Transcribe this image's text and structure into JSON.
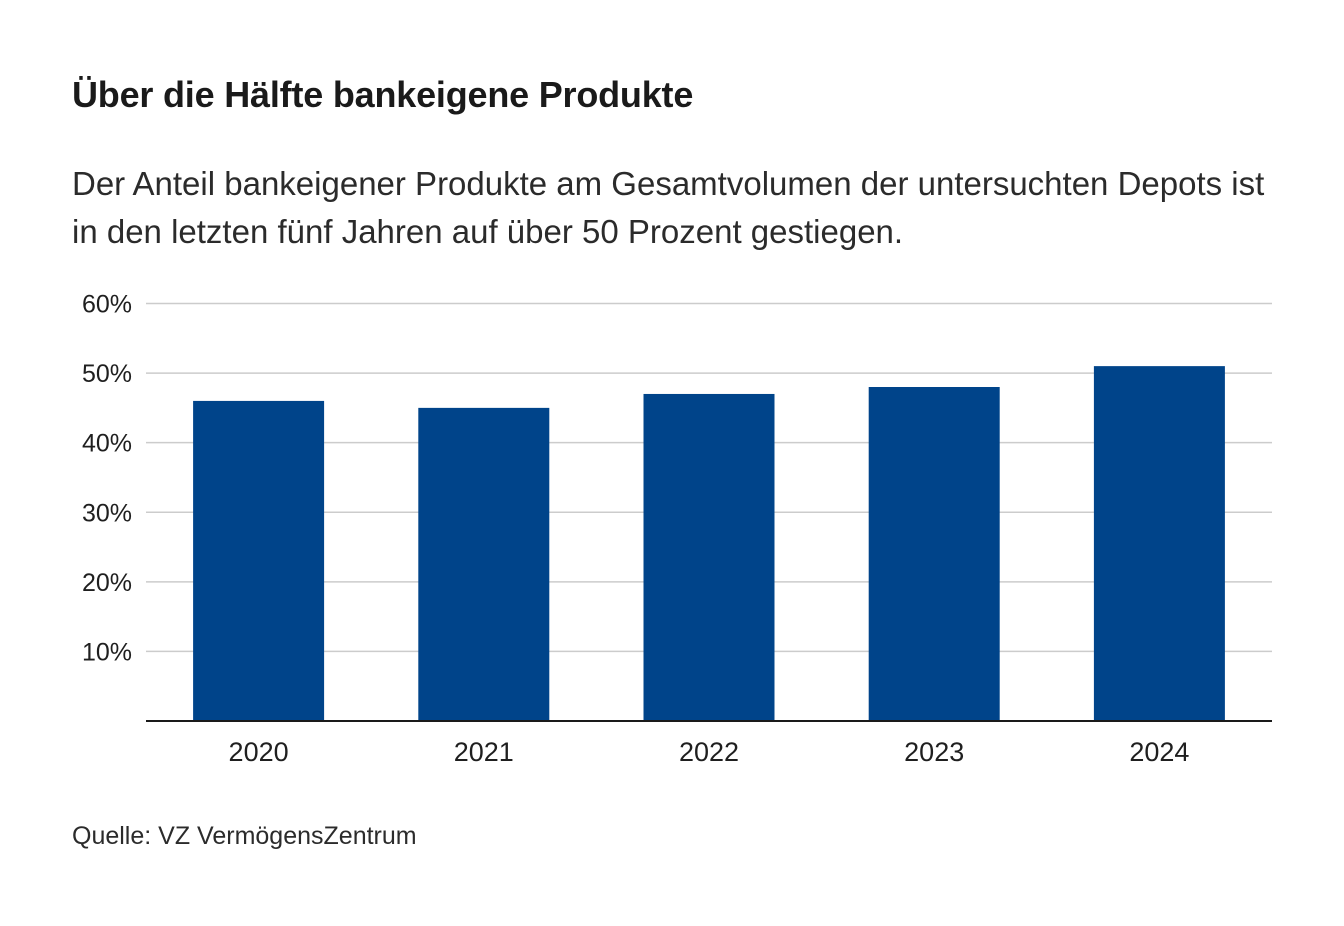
{
  "title": "Über die Hälfte bankeigene Produkte",
  "subtitle": "Der Anteil bankeigener Produkte am Gesamtvolumen der untersuchten Depots ist in den letzten fünf Jahren auf über 50 Prozent gestiegen.",
  "source": "Quelle: VZ VermögensZentrum",
  "colors": {
    "bar": "#00448a",
    "grid": "#cccccc",
    "axis": "#1a1a1a",
    "text": "#1f1f1f"
  },
  "chart_data": {
    "type": "bar",
    "categories": [
      "2020",
      "2021",
      "2022",
      "2023",
      "2024"
    ],
    "values": [
      46,
      45,
      47,
      48,
      51
    ],
    "ylim": [
      0,
      60
    ],
    "yticks": [
      10,
      20,
      30,
      40,
      50,
      60
    ],
    "ytick_labels": [
      "10%",
      "20%",
      "30%",
      "40%",
      "50%",
      "60%"
    ],
    "xlabel": "",
    "ylabel": "",
    "grid": true,
    "legend": "none"
  }
}
